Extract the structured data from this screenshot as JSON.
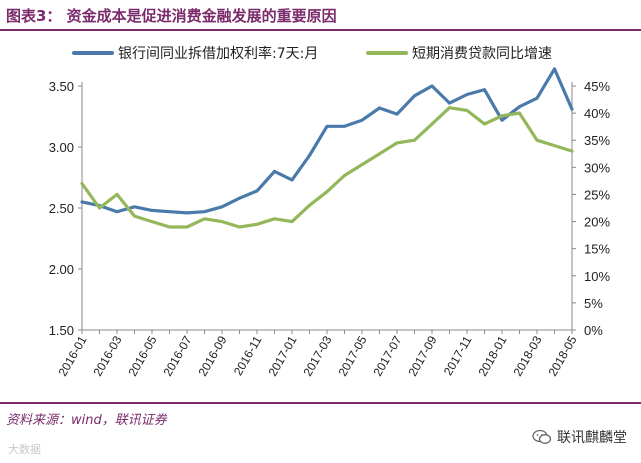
{
  "header": {
    "title": "图表3：  资金成本是促进消费金融发展的重要原因"
  },
  "footer": {
    "source": "资料来源：wind，联讯证券",
    "watermark": "大数据",
    "brand": "联讯麒麟堂",
    "brand_icon": "wechat-icon"
  },
  "colors": {
    "series1": "#4a7aaa",
    "series2": "#93b75a",
    "accent": "#7a2b6b"
  },
  "chart_data": {
    "type": "line",
    "legend_position": "top",
    "grid": false,
    "x": [
      "2016-01",
      "2016-02",
      "2016-03",
      "2016-04",
      "2016-05",
      "2016-06",
      "2016-07",
      "2016-08",
      "2016-09",
      "2016-10",
      "2016-11",
      "2016-12",
      "2017-01",
      "2017-02",
      "2017-03",
      "2017-04",
      "2017-05",
      "2017-06",
      "2017-07",
      "2017-08",
      "2017-09",
      "2017-10",
      "2017-11",
      "2017-12",
      "2018-01",
      "2018-02",
      "2018-03",
      "2018-04",
      "2018-05"
    ],
    "x_tick_labels": [
      "2016-01",
      "2016-03",
      "2016-05",
      "2016-07",
      "2016-09",
      "2016-11",
      "2017-01",
      "2017-03",
      "2017-05",
      "2017-07",
      "2017-09",
      "2017-11",
      "2018-01",
      "2018-03",
      "2018-05"
    ],
    "series": [
      {
        "name": "银行间同业拆借加权利率:7天:月",
        "axis": "left",
        "values": [
          2.55,
          2.52,
          2.47,
          2.51,
          2.48,
          2.47,
          2.46,
          2.47,
          2.51,
          2.58,
          2.64,
          2.8,
          2.73,
          2.93,
          3.17,
          3.17,
          3.22,
          3.32,
          3.27,
          3.42,
          3.5,
          3.36,
          3.43,
          3.47,
          3.22,
          3.33,
          3.4,
          3.64,
          3.31
        ]
      },
      {
        "name": "短期消费贷款同比增速",
        "axis": "right",
        "values": [
          27,
          22.5,
          25,
          21,
          20,
          19,
          19,
          20.5,
          20,
          19,
          19.5,
          20.5,
          20,
          23,
          25.5,
          28.5,
          30.5,
          32.5,
          34.5,
          35,
          38,
          41,
          40.5,
          38,
          39.5,
          40,
          35,
          34,
          33
        ]
      }
    ],
    "left_axis": {
      "ylim": [
        1.5,
        3.5
      ],
      "ticks": [
        "1.50",
        "2.00",
        "2.50",
        "3.00",
        "3.50"
      ]
    },
    "right_axis": {
      "ylim": [
        0,
        45
      ],
      "ticks": [
        "0%",
        "5%",
        "10%",
        "15%",
        "20%",
        "25%",
        "30%",
        "35%",
        "40%",
        "45%"
      ]
    }
  }
}
